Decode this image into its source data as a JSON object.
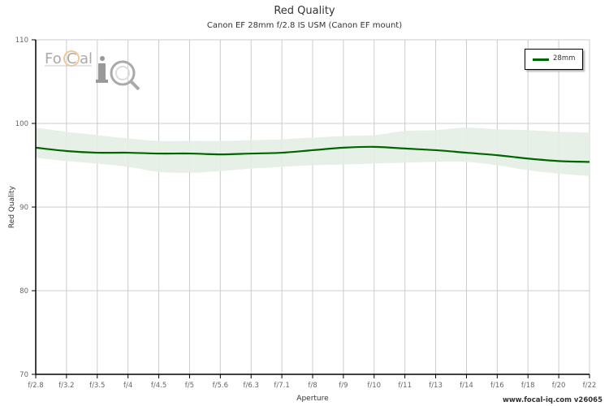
{
  "header": {
    "title": "Red Quality",
    "subtitle": "Canon EF 28mm f/2.8 IS USM (Canon EF mount)"
  },
  "logo": {
    "text_left": "Focal",
    "text_right": "iQ",
    "icon": "magnifier-aperture-icon"
  },
  "legend": {
    "items": [
      {
        "label": "28mm",
        "color": "#006600"
      }
    ]
  },
  "footer": {
    "text": "www.focal-iq.com  v26065"
  },
  "colors": {
    "line": "#006600",
    "band": "#e3eee3",
    "grid": "#cccccc",
    "axis": "#000000"
  },
  "chart_data": {
    "type": "line",
    "title": "Red Quality",
    "subtitle": "Canon EF 28mm f/2.8 IS USM (Canon EF mount)",
    "xlabel": "Aperture",
    "ylabel": "Red Quality",
    "ylim": [
      70,
      110
    ],
    "yticks": [
      70,
      80,
      90,
      100,
      110
    ],
    "categories": [
      "f/2.8",
      "f/3.2",
      "f/3.5",
      "f/4",
      "f/4.5",
      "f/5",
      "f/5.6",
      "f/6.3",
      "f/7.1",
      "f/8",
      "f/9",
      "f/10",
      "f/11",
      "f/13",
      "f/14",
      "f/16",
      "f/18",
      "f/20",
      "f/22"
    ],
    "grid": true,
    "legend_position": "top-right",
    "series": [
      {
        "name": "28mm",
        "color": "#006600",
        "values": [
          97.1,
          96.7,
          96.5,
          96.5,
          96.4,
          96.4,
          96.3,
          96.4,
          96.5,
          96.8,
          97.1,
          97.2,
          97.0,
          96.8,
          96.5,
          96.2,
          95.8,
          95.5,
          95.4
        ],
        "band_upper": [
          99.5,
          99.0,
          98.6,
          98.2,
          97.9,
          97.9,
          97.9,
          98.0,
          98.1,
          98.3,
          98.5,
          98.6,
          99.1,
          99.2,
          99.5,
          99.3,
          99.2,
          99.0,
          98.9
        ],
        "band_lower": [
          95.9,
          95.5,
          95.2,
          94.8,
          94.2,
          94.1,
          94.3,
          94.6,
          94.8,
          95.0,
          95.1,
          95.2,
          95.3,
          95.4,
          95.4,
          95.0,
          94.4,
          94.0,
          93.7
        ]
      }
    ]
  }
}
